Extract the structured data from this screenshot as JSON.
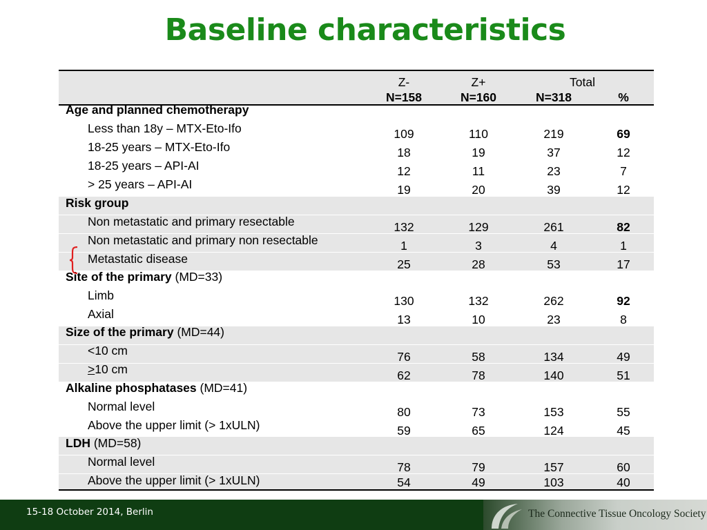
{
  "title": "Baseline characteristics",
  "header": {
    "cols": [
      {
        "top": "Z-",
        "n": "N=158"
      },
      {
        "top": "Z+",
        "n": "N=160"
      },
      {
        "top": "Total",
        "n": "N=318"
      },
      {
        "top": "",
        "n": "%"
      }
    ]
  },
  "groups": [
    {
      "label_bold": "Age and planned chemotherapy",
      "label_rest": "",
      "rows": [
        {
          "label": "Less than 18y – MTX-Eto-Ifo",
          "zminus": "109",
          "zplus": "110",
          "total": "219",
          "pct": "69"
        },
        {
          "label": "18-25 years – MTX-Eto-Ifo",
          "zminus": "18",
          "zplus": "19",
          "total": "37",
          "pct": "12"
        },
        {
          "label": "18-25 years – API-AI",
          "zminus": "12",
          "zplus": "11",
          "total": "23",
          "pct": "7"
        },
        {
          "label": "> 25 years – API-AI",
          "zminus": "19",
          "zplus": "20",
          "total": "39",
          "pct": "12"
        }
      ]
    },
    {
      "label_bold": "Risk group",
      "label_rest": "",
      "rows": [
        {
          "label": "Non metastatic and primary resectable",
          "zminus": "132",
          "zplus": "129",
          "total": "261",
          "pct": "82"
        },
        {
          "label": "Non metastatic and primary non resectable",
          "zminus": "1",
          "zplus": "3",
          "total": "4",
          "pct": "1"
        },
        {
          "label": "Metastatic disease",
          "zminus": "25",
          "zplus": "28",
          "total": "53",
          "pct": "17"
        }
      ]
    },
    {
      "label_bold": "Site of the primary",
      "label_rest": " (MD=33)",
      "rows": [
        {
          "label": "Limb",
          "zminus": "130",
          "zplus": "132",
          "total": "262",
          "pct": "92"
        },
        {
          "label": "Axial",
          "zminus": "13",
          "zplus": "10",
          "total": "23",
          "pct": "8"
        }
      ]
    },
    {
      "label_bold": "Size of the primary",
      "label_rest": " (MD=44)",
      "rows": [
        {
          "label": "<10 cm",
          "zminus": "76",
          "zplus": "58",
          "total": "134",
          "pct": "49"
        },
        {
          "label_prefix": ">",
          "label": "10 cm",
          "zminus": "62",
          "zplus": "78",
          "total": "140",
          "pct": "51"
        }
      ]
    },
    {
      "label_bold": "Alkaline phosphatases",
      "label_rest": " (MD=41)",
      "rows": [
        {
          "label": "Normal level",
          "zminus": "80",
          "zplus": "73",
          "total": "153",
          "pct": "55"
        },
        {
          "label": "Above the upper limit (> 1xULN)",
          "zminus": "59",
          "zplus": "65",
          "total": "124",
          "pct": "45"
        }
      ]
    },
    {
      "label_bold": "LDH",
      "label_rest": " (MD=58)",
      "rows": [
        {
          "label": "Normal level",
          "zminus": "78",
          "zplus": "79",
          "total": "157",
          "pct": "60"
        },
        {
          "label": "Above the upper limit (> 1xULN)",
          "zminus": "54",
          "zplus": "49",
          "total": "103",
          "pct": "40"
        }
      ]
    }
  ],
  "footer": {
    "date": "15-18 October 2014, Berlin",
    "organization": "The Connective Tissue Oncology Society"
  },
  "colors": {
    "title": "#1a8a1a",
    "footer_bg": "#0f3d12",
    "band": "#e6e6e6",
    "brace": "#e02020"
  }
}
